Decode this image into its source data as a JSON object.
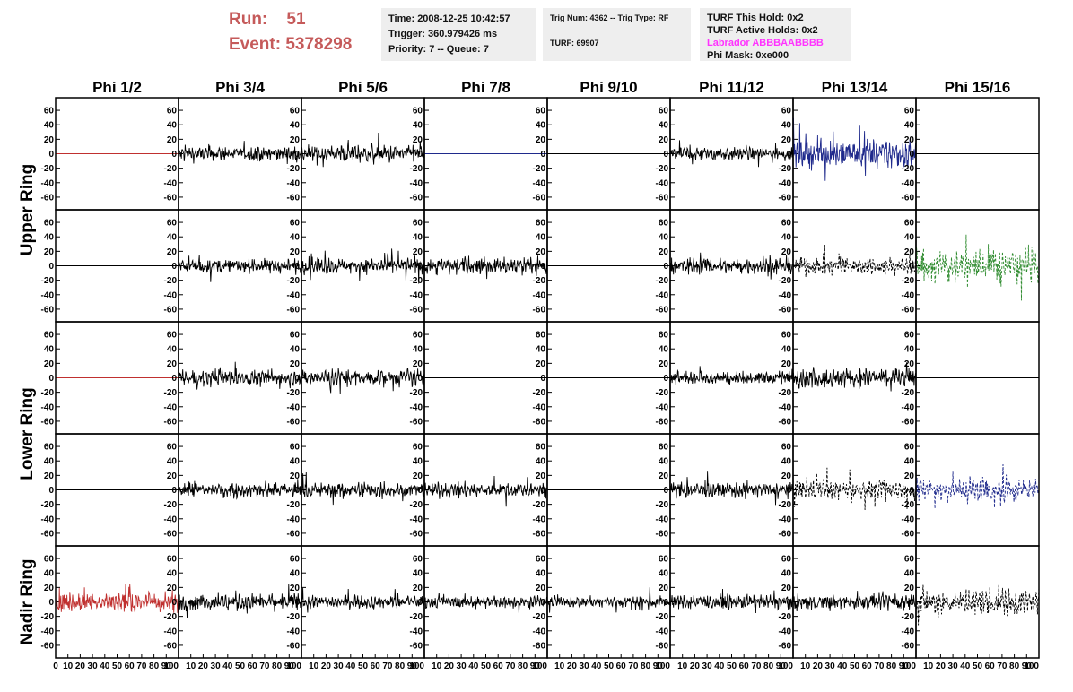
{
  "header": {
    "run_label": "Run:",
    "run_value": "51",
    "event_label": "Event:",
    "event_value": "5378298",
    "time": "Time: 2008-12-25 10:42:57",
    "trigger": "Trigger: 360.979426 ms",
    "priority": "Priority: 7 -- Queue: 7",
    "trig_num": "Trig Num: 4362 -- Trig Type: RF",
    "turf": "TURF: 69907",
    "turf_this_hold": "TURF This Hold: 0x2",
    "turf_active_holds": "TURF Active Holds: 0x2",
    "labrador": "Labrador ABBBAABBBB",
    "phi_mask": "Phi Mask: 0xe000"
  },
  "chart_data": {
    "type": "line",
    "columns": [
      "Phi 1/2",
      "Phi 3/4",
      "Phi 5/6",
      "Phi 7/8",
      "Phi 9/10",
      "Phi 11/12",
      "Phi 13/14",
      "Phi 15/16"
    ],
    "rows": [
      "Upper Ring",
      "Upper Ring",
      "Lower Ring",
      "Lower Ring",
      "Nadir Ring"
    ],
    "row_labels": [
      {
        "text": "Upper Ring",
        "span": [
          0,
          1
        ]
      },
      {
        "text": "Lower Ring",
        "span": [
          2,
          3
        ]
      },
      {
        "text": "Nadir Ring",
        "span": [
          4,
          4
        ]
      }
    ],
    "xlim": [
      0,
      100
    ],
    "ylim": [
      -70,
      70
    ],
    "y_ticks": [
      -60,
      -40,
      -20,
      0,
      20,
      40,
      60
    ],
    "x_ticks": [
      0,
      10,
      20,
      30,
      40,
      50,
      60,
      70,
      80,
      90,
      100
    ],
    "colors": {
      "black": "#000000",
      "red": "#c0302f",
      "blue": "#1f2a8c",
      "green": "#2e8b2e"
    },
    "panels": [
      [
        {
          "style": "flat",
          "color": "red",
          "amp": 0
        },
        {
          "style": "solid",
          "color": "black",
          "amp": 12
        },
        {
          "style": "solid",
          "color": "black",
          "amp": 13
        },
        {
          "style": "flat",
          "color": "blue",
          "amp": 0
        },
        {
          "style": "flat",
          "color": "black",
          "amp": 0
        },
        {
          "style": "solid",
          "color": "black",
          "amp": 10
        },
        {
          "style": "solid",
          "color": "blue",
          "amp": 22
        },
        {
          "style": "flat",
          "color": "black",
          "amp": 0
        }
      ],
      [
        {
          "style": "flat",
          "color": "black",
          "amp": 0
        },
        {
          "style": "solid",
          "color": "black",
          "amp": 11
        },
        {
          "style": "solid",
          "color": "black",
          "amp": 12
        },
        {
          "style": "solid",
          "color": "black",
          "amp": 14
        },
        {
          "style": "flat",
          "color": "black",
          "amp": 0
        },
        {
          "style": "solid",
          "color": "black",
          "amp": 13
        },
        {
          "style": "dashed",
          "color": "black",
          "amp": 14
        },
        {
          "style": "dashed",
          "color": "green",
          "amp": 26
        }
      ],
      [
        {
          "style": "flat",
          "color": "red",
          "amp": 0
        },
        {
          "style": "solid",
          "color": "black",
          "amp": 12
        },
        {
          "style": "solid",
          "color": "black",
          "amp": 13
        },
        {
          "style": "flat",
          "color": "black",
          "amp": 0
        },
        {
          "style": "flat",
          "color": "black",
          "amp": 0
        },
        {
          "style": "solid",
          "color": "black",
          "amp": 10
        },
        {
          "style": "solid",
          "color": "black",
          "amp": 15
        },
        {
          "style": "flat",
          "color": "black",
          "amp": 0
        }
      ],
      [
        {
          "style": "flat",
          "color": "black",
          "amp": 0
        },
        {
          "style": "solid",
          "color": "black",
          "amp": 12
        },
        {
          "style": "solid",
          "color": "black",
          "amp": 12
        },
        {
          "style": "solid",
          "color": "black",
          "amp": 11
        },
        {
          "style": "flat",
          "color": "black",
          "amp": 0
        },
        {
          "style": "solid",
          "color": "black",
          "amp": 12
        },
        {
          "style": "dashed",
          "color": "black",
          "amp": 14
        },
        {
          "style": "dashed",
          "color": "blue",
          "amp": 20
        }
      ],
      [
        {
          "style": "solid",
          "color": "red",
          "amp": 16
        },
        {
          "style": "solid",
          "color": "black",
          "amp": 14
        },
        {
          "style": "solid",
          "color": "black",
          "amp": 9
        },
        {
          "style": "solid",
          "color": "black",
          "amp": 9
        },
        {
          "style": "solid",
          "color": "black",
          "amp": 9
        },
        {
          "style": "solid",
          "color": "black",
          "amp": 11
        },
        {
          "style": "solid",
          "color": "black",
          "amp": 12
        },
        {
          "style": "dashed",
          "color": "black",
          "amp": 20
        }
      ]
    ]
  }
}
